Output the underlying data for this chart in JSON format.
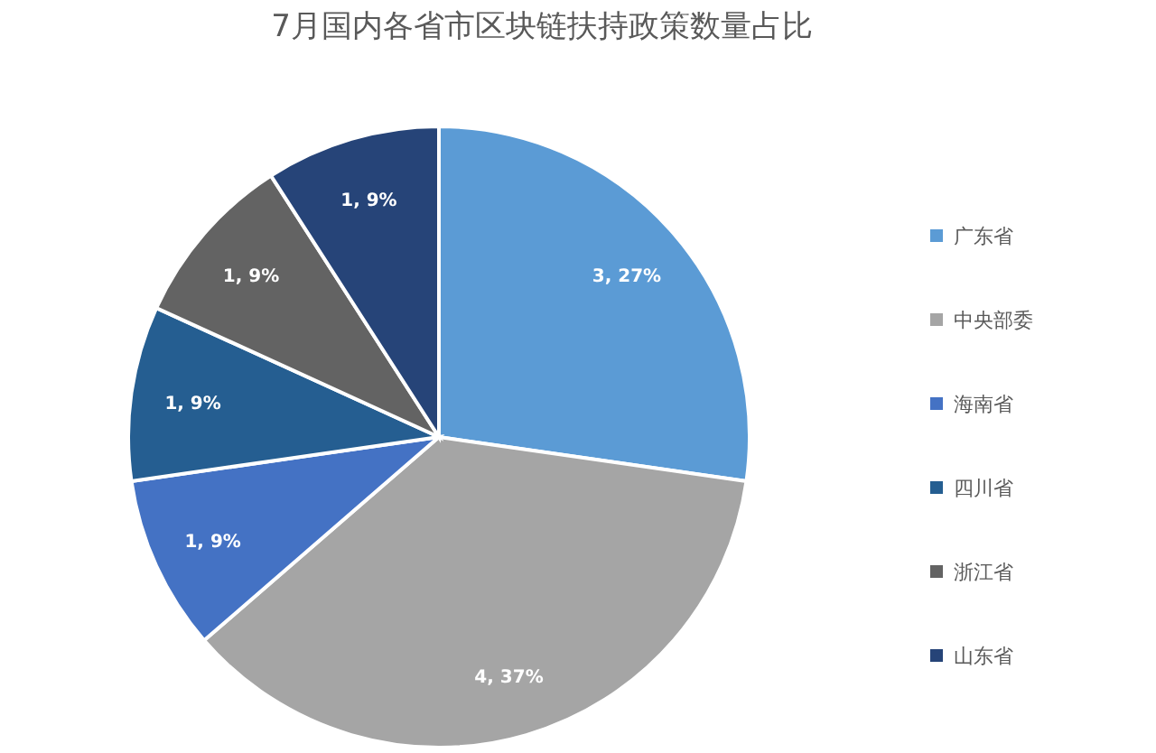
{
  "chart_data": {
    "type": "pie",
    "title": "7月国内各省市区块链扶持政策数量占比",
    "categories": [
      "广东省",
      "中央部委",
      "海南省",
      "四川省",
      "浙江省",
      "山东省"
    ],
    "values": [
      3,
      4,
      1,
      1,
      1,
      1
    ],
    "colors": [
      "#5b9bd5",
      "#a5a5a5",
      "#4472c4",
      "#255e91",
      "#636363",
      "#264478"
    ],
    "value_labels": [
      "3, 27%",
      "4, 37%",
      "1, 9%",
      "1, 9%",
      "1, 9%",
      "1, 9%"
    ],
    "legend": "right"
  }
}
